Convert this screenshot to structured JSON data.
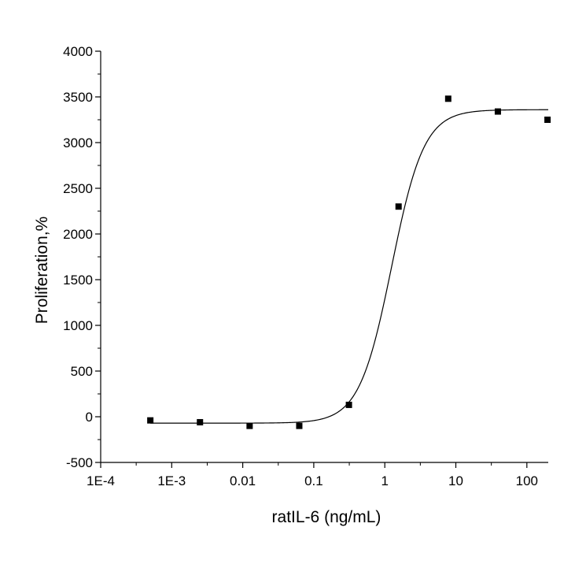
{
  "chart_data": {
    "type": "scatter",
    "xlabel": "ratIL-6 (ng/mL)",
    "ylabel": "Proliferation,%",
    "x_scale": "log",
    "xlim": [
      0.0001,
      200
    ],
    "ylim": [
      -500,
      4000
    ],
    "x_ticks": [
      "1E-4",
      "1E-3",
      "0.01",
      "0.1",
      "1",
      "10",
      "100"
    ],
    "x_tick_values": [
      0.0001,
      0.001,
      0.01,
      0.1,
      1,
      10,
      100
    ],
    "y_ticks": [
      "-500",
      "0",
      "500",
      "1000",
      "1500",
      "2000",
      "2500",
      "3000",
      "3500",
      "4000"
    ],
    "y_tick_values": [
      -500,
      0,
      500,
      1000,
      1500,
      2000,
      2500,
      3000,
      3500,
      4000
    ],
    "grid": false,
    "series": [
      {
        "marker": "square",
        "color": "#000000",
        "x": [
          0.0005,
          0.0025,
          0.0125,
          0.0625,
          0.3125,
          1.5625,
          7.8125,
          39.0625,
          195.3125
        ],
        "y": [
          -40,
          -60,
          -100,
          -100,
          130,
          2300,
          3480,
          3340,
          3250
        ]
      }
    ],
    "fit_curve": {
      "type": "sigmoid",
      "color": "#000000",
      "bottom": -70,
      "top": 3360,
      "ec50": 1.25,
      "hill_slope": 1.9
    }
  }
}
